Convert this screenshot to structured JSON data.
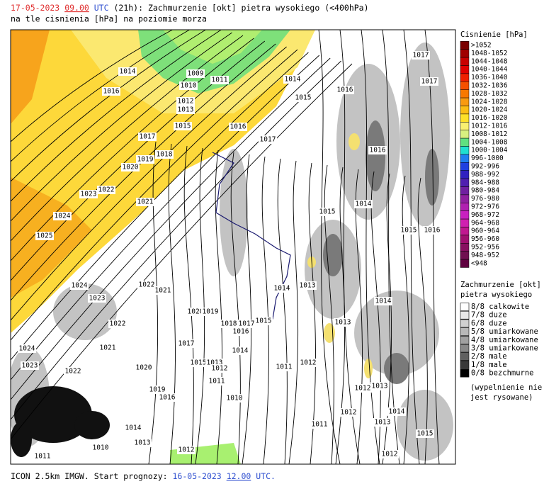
{
  "header": {
    "date": "17-05-2023",
    "time": "09.00",
    "tz": "UTC",
    "lead": "(21h):",
    "title": "Zachmurzenie [okt] pietra wysokiego (<400hPa)",
    "subtitle": "na tle cisnienia [hPa] na poziomie morza"
  },
  "pressure_legend": {
    "title": "Cisnienie [hPa]",
    "items": [
      ">1052",
      "1048-1052",
      "1044-1048",
      "1040-1044",
      "1036-1040",
      "1032-1036",
      "1028-1032",
      "1024-1028",
      "1020-1024",
      "1016-1020",
      "1012-1016",
      "1008-1012",
      "1004-1008",
      "1000-1004",
      "996-1000",
      "992-996",
      "988-992",
      "984-988",
      "980-984",
      "976-980",
      "972-976",
      "968-972",
      "964-968",
      "960-964",
      "956-960",
      "952-956",
      "948-952",
      "<948"
    ],
    "colors": [
      "#7a0000",
      "#a00000",
      "#c80000",
      "#e00000",
      "#f02000",
      "#f55000",
      "#f87800",
      "#f99a10",
      "#fbbd14",
      "#fde028",
      "#f8f070",
      "#d8f080",
      "#60e080",
      "#20e0d0",
      "#2080f0",
      "#2040e0",
      "#3020c0",
      "#5020b0",
      "#7020a0",
      "#9020a0",
      "#b020b0",
      "#c820c0",
      "#d020b0",
      "#c01890",
      "#a01070",
      "#881060",
      "#701050",
      "#600040"
    ]
  },
  "cloud_legend": {
    "title": "Zachmurzenie [okt]",
    "subtitle": "pietra wysokiego",
    "items": [
      "8/8 calkowite",
      "7/8 duze",
      "6/8 duze",
      "5/8 umiarkowane",
      "4/8 umiarkowane",
      "3/8 umiarkowane",
      "2/8 male",
      "1/8 male",
      "0/8 bezchmurne"
    ],
    "colors": [
      "#ffffff",
      "#e8e8e8",
      "#d0d0d0",
      "#b8b8b8",
      "#a0a0a0",
      "#888888",
      "#606060",
      "#383838",
      "#000000"
    ],
    "note": [
      "(wypelnienie nie",
      "jest rysowane)"
    ]
  },
  "isobar_labels": [
    1014,
    1009,
    1010,
    1011,
    1012,
    1013,
    1016,
    1014,
    1015,
    1016,
    1015,
    1016,
    1017,
    1017,
    1019,
    1018,
    1020,
    1022,
    1023,
    1021,
    1016,
    1014,
    1015,
    1015,
    1016,
    1024,
    1025,
    1017,
    1017,
    1022,
    1021,
    1024,
    1023,
    1014,
    1013,
    1014,
    1020,
    1019,
    1022,
    1013,
    1018,
    1017,
    1015,
    1016,
    1017,
    1024,
    1021,
    1014,
    1023,
    1020,
    1015,
    1013,
    1012,
    1011,
    1012,
    1022,
    1011,
    1012,
    1013,
    1019,
    1016,
    1010,
    1012,
    1014,
    1011,
    1013,
    1014,
    1013,
    1015,
    1012,
    1010,
    1012,
    1011
  ],
  "footer": {
    "text": "ICON 2.5km IMGW. Start prognozy:",
    "date": "16-05-2023",
    "time": "12.00",
    "tz": "UTC."
  }
}
